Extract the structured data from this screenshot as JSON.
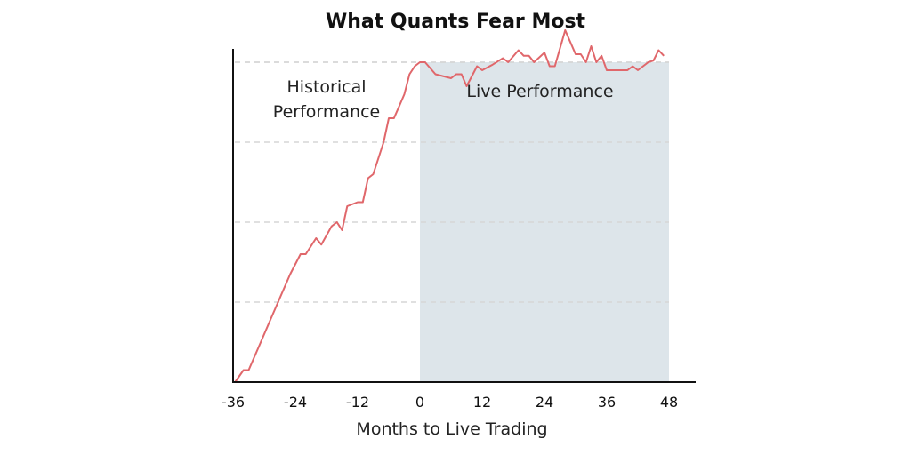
{
  "chart_data": {
    "type": "line",
    "title": "What Quants Fear Most",
    "xlabel": "Months to Live Trading",
    "ylabel": "",
    "xlim": [
      -36,
      48
    ],
    "ylim": [
      0,
      4
    ],
    "x_ticks": [
      "-36",
      "-24",
      "-12",
      "0",
      "12",
      "24",
      "36",
      "48"
    ],
    "grid": "horizontal-dashed",
    "regions": [
      {
        "name": "historical",
        "label_lines": [
          "Historical",
          "Performance"
        ],
        "x_range": [
          -36,
          0
        ],
        "shaded": false
      },
      {
        "name": "live",
        "label_lines": [
          "Live Performance"
        ],
        "x_range": [
          0,
          48
        ],
        "shaded": true,
        "color": "#dde5ea"
      }
    ],
    "series": [
      {
        "color": "#e0676b",
        "points": [
          [
            -35.6,
            0.0
          ],
          [
            -34,
            0.15
          ],
          [
            -33,
            0.15
          ],
          [
            -31,
            0.45
          ],
          [
            -29,
            0.75
          ],
          [
            -27,
            1.05
          ],
          [
            -25,
            1.35
          ],
          [
            -23,
            1.6
          ],
          [
            -22,
            1.6
          ],
          [
            -20,
            1.8
          ],
          [
            -19,
            1.72
          ],
          [
            -17,
            1.95
          ],
          [
            -16,
            2.0
          ],
          [
            -15,
            1.9
          ],
          [
            -14,
            2.2
          ],
          [
            -12,
            2.25
          ],
          [
            -11,
            2.25
          ],
          [
            -10,
            2.55
          ],
          [
            -9,
            2.6
          ],
          [
            -7,
            3.0
          ],
          [
            -6,
            3.3
          ],
          [
            -5,
            3.3
          ],
          [
            -4,
            3.45
          ],
          [
            -3,
            3.6
          ],
          [
            -2,
            3.85
          ],
          [
            -1,
            3.95
          ],
          [
            0,
            4.0
          ],
          [
            1,
            4.0
          ],
          [
            3,
            3.85
          ],
          [
            6,
            3.8
          ],
          [
            7,
            3.85
          ],
          [
            8,
            3.85
          ],
          [
            9,
            3.7
          ],
          [
            11,
            3.95
          ],
          [
            12,
            3.9
          ],
          [
            14,
            3.97
          ],
          [
            16,
            4.05
          ],
          [
            17,
            4.0
          ],
          [
            19,
            4.15
          ],
          [
            20,
            4.08
          ],
          [
            21,
            4.08
          ],
          [
            22,
            4.0
          ],
          [
            24,
            4.12
          ],
          [
            25,
            3.95
          ],
          [
            26,
            3.95
          ],
          [
            28,
            4.4
          ],
          [
            30,
            4.1
          ],
          [
            31,
            4.1
          ],
          [
            32,
            4.0
          ],
          [
            33,
            4.2
          ],
          [
            34,
            4.0
          ],
          [
            35,
            4.08
          ],
          [
            36,
            3.9
          ],
          [
            37,
            3.9
          ],
          [
            40,
            3.9
          ],
          [
            41,
            3.95
          ],
          [
            42,
            3.9
          ],
          [
            44,
            4.0
          ],
          [
            45,
            4.02
          ],
          [
            46,
            4.15
          ],
          [
            47,
            4.08
          ]
        ]
      }
    ]
  }
}
